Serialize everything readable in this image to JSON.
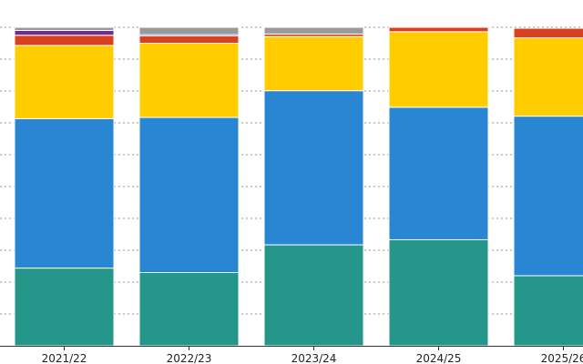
{
  "chart_data": {
    "type": "bar",
    "stacked": true,
    "categories": [
      "2021/22",
      "2022/23",
      "2023/24",
      "2024/25",
      "2025/26"
    ],
    "ylim": [
      0,
      100
    ],
    "grid": true,
    "series": [
      {
        "color": "#24968a",
        "values": [
          24.4,
          23.0,
          31.7,
          33.3,
          22.0
        ]
      },
      {
        "color": "#2986d3",
        "values": [
          46.9,
          48.7,
          48.4,
          41.6,
          50.1
        ]
      },
      {
        "color": "#ffcc00",
        "values": [
          23.0,
          23.3,
          17.0,
          23.7,
          24.6
        ]
      },
      {
        "color": "#d9411e",
        "values": [
          3.2,
          2.3,
          0.8,
          1.4,
          3.0
        ]
      },
      {
        "color": "#6f2e8e",
        "values": [
          1.5,
          0.4,
          0,
          0,
          0
        ]
      },
      {
        "color": "#9a9a9a",
        "values": [
          1.0,
          2.3,
          2.1,
          0,
          0
        ]
      }
    ]
  }
}
